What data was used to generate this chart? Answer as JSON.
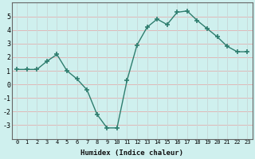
{
  "x": [
    0,
    1,
    2,
    3,
    4,
    5,
    6,
    7,
    8,
    9,
    10,
    11,
    12,
    13,
    14,
    15,
    16,
    17,
    18,
    19,
    20,
    21,
    22,
    23
  ],
  "y": [
    1.1,
    1.1,
    1.1,
    1.7,
    2.2,
    1.0,
    0.4,
    -0.4,
    -2.2,
    -3.2,
    -3.2,
    0.3,
    2.9,
    4.2,
    4.8,
    4.4,
    5.3,
    5.4,
    4.7,
    4.1,
    3.5,
    2.8,
    2.4,
    2.4
  ],
  "line_color": "#2e7d6e",
  "marker": "+",
  "marker_size": 4,
  "bg_color": "#cff0ee",
  "grid_color_h": "#e0b8b8",
  "grid_color_v": "#c8dada",
  "xlabel": "Humidex (Indice chaleur)",
  "ylim": [
    -4,
    6
  ],
  "xlim": [
    -0.5,
    23.5
  ],
  "yticks": [
    -3,
    -2,
    -1,
    0,
    1,
    2,
    3,
    4,
    5
  ],
  "xticks": [
    0,
    1,
    2,
    3,
    4,
    5,
    6,
    7,
    8,
    9,
    10,
    11,
    12,
    13,
    14,
    15,
    16,
    17,
    18,
    19,
    20,
    21,
    22,
    23
  ]
}
